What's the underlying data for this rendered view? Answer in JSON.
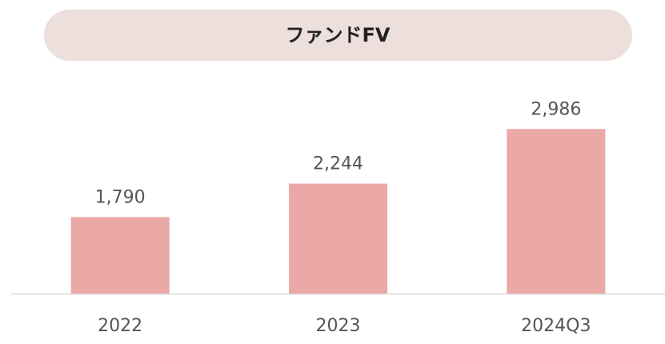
{
  "chart_data": {
    "type": "bar",
    "title": "ファンドFV",
    "categories": [
      "2022",
      "2023",
      "2024Q3"
    ],
    "values": [
      1790,
      2244,
      2986
    ],
    "value_labels": [
      "1,790",
      "2,244",
      "2,986"
    ],
    "color": "#eaa8a6",
    "ylim": [
      750,
      3000
    ]
  }
}
